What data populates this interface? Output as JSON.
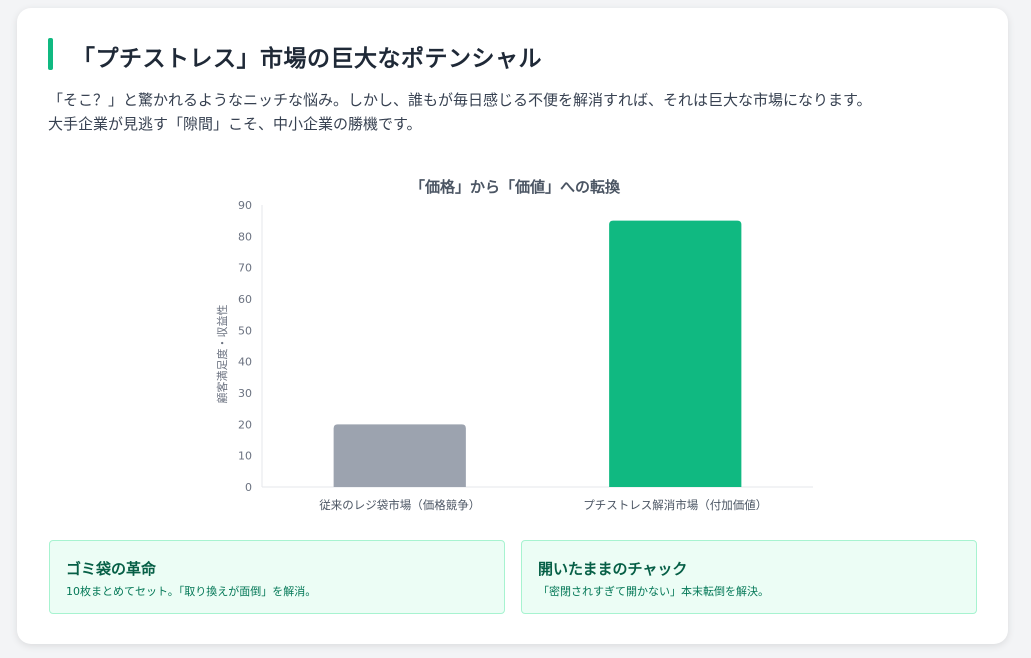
{
  "header": {
    "title": "「プチストレス」市場の巨大なポテンシャル",
    "desc_line1": "「そこ？」と驚かれるようなニッチな悩み。しかし、誰もが毎日感じる不便を解消すれば、それは巨大な市場になります。",
    "desc_line2": "大手企業が見逃す「隙間」こそ、中小企業の勝機です。"
  },
  "chart_data": {
    "type": "bar",
    "title": "「価格」から「価値」への転換",
    "categories": [
      "従来のレジ袋市場（価格競争）",
      "プチストレス解消市場（付加価値）"
    ],
    "values": [
      20,
      85
    ],
    "colors": [
      "#9ca3af",
      "#10b981"
    ],
    "xlabel": "",
    "ylabel": "顧客満足度・収益性",
    "ylim": [
      0,
      90
    ],
    "yticks": [
      0,
      10,
      20,
      30,
      40,
      50,
      60,
      70,
      80,
      90
    ],
    "grid": false,
    "legend": "none"
  },
  "features": [
    {
      "title": "ゴミ袋の革命",
      "text": "10枚まとめてセット。「取り換えが面倒」を解消。"
    },
    {
      "title": "開いたままのチャック",
      "text": "「密閉されすぎて開かない」本末転倒を解決。"
    }
  ]
}
